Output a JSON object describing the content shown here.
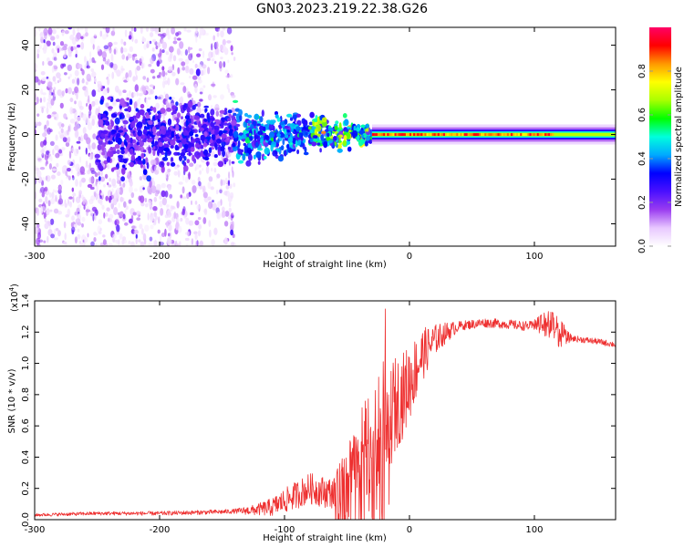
{
  "title": "GN03.2023.219.22.38.G26",
  "colors": {
    "snr_line": "#ee3030",
    "axis": "#000000",
    "background": "#ffffff"
  },
  "chart_data": [
    {
      "type": "heatmap",
      "xlabel": "Height of straight line (km)",
      "ylabel": "Frequency (Hz)",
      "xlim": [
        -300,
        165
      ],
      "ylim": [
        -50,
        48
      ],
      "x_ticks": [
        -300,
        -200,
        -100,
        0,
        100
      ],
      "y_ticks": [
        -40,
        -20,
        0,
        20,
        40
      ],
      "x_tick_labels": [
        "-300",
        "-200",
        "-100",
        "0",
        "100"
      ],
      "y_tick_labels": [
        "-40",
        "-20",
        "0",
        "20",
        "40"
      ],
      "colorbar": {
        "label": "Normalized spectral amplitude",
        "range": [
          0,
          1
        ],
        "ticks": [
          0.0,
          0.2,
          0.4,
          0.6,
          0.8
        ],
        "tick_labels": [
          "0.0",
          "0.2",
          "0.4",
          "0.6",
          "0.8"
        ],
        "colormap": [
          "#ffffff",
          "#e8c8ff",
          "#9a3cf0",
          "#4a10ff",
          "#0000ff",
          "#00aaff",
          "#00ffdd",
          "#00ff00",
          "#aaff00",
          "#ffff00",
          "#ff9900",
          "#ff0000",
          "#ff0066"
        ]
      },
      "features": {
        "scatter_region_km": [
          -300,
          -140
        ],
        "dense_band_km": [
          -250,
          -30
        ],
        "narrow_band_km": [
          -30,
          165
        ],
        "peak_band_km": [
          -30,
          115
        ]
      }
    },
    {
      "type": "line",
      "xlabel": "Height of straight line (km)",
      "ylabel": "SNR (10 * v/v)",
      "y_scale_label": "(x10",
      "y_scale_exp": "4",
      "y_scale_close": ")",
      "xlim": [
        -300,
        165
      ],
      "ylim": [
        0,
        1.4
      ],
      "x_ticks": [
        -300,
        -200,
        -100,
        0,
        100
      ],
      "y_ticks": [
        0.0,
        0.2,
        0.4,
        0.6,
        0.8,
        1.0,
        1.2,
        1.4
      ],
      "x_tick_labels": [
        "-300",
        "-200",
        "-100",
        "0",
        "100"
      ],
      "y_tick_labels": [
        "0.0",
        "0.2",
        "0.4",
        "0.6",
        "0.8",
        "1.0",
        "1.2",
        "1.4"
      ],
      "envelope": {
        "x": [
          -300,
          -250,
          -200,
          -150,
          -125,
          -110,
          -100,
          -90,
          -80,
          -70,
          -60,
          -50,
          -45,
          -40,
          -35,
          -30,
          -25,
          -20,
          -15,
          -10,
          -5,
          0,
          10,
          20,
          30,
          40,
          60,
          80,
          90,
          100,
          110,
          115,
          120,
          130,
          150,
          165
        ],
        "y": [
          0.03,
          0.04,
          0.04,
          0.05,
          0.06,
          0.08,
          0.12,
          0.16,
          0.2,
          0.18,
          0.17,
          0.3,
          0.4,
          0.45,
          0.48,
          0.52,
          0.55,
          0.62,
          0.68,
          0.75,
          0.8,
          0.88,
          1.05,
          1.15,
          1.2,
          1.24,
          1.26,
          1.25,
          1.24,
          1.24,
          1.23,
          1.22,
          1.18,
          1.16,
          1.14,
          1.12
        ]
      },
      "noise_amplitude": {
        "x": [
          -300,
          -140,
          -120,
          -100,
          -80,
          -60,
          -50,
          -40,
          -30,
          -20,
          -10,
          0,
          20,
          40,
          100,
          110,
          120,
          130,
          165
        ],
        "y": [
          0.01,
          0.015,
          0.04,
          0.08,
          0.1,
          0.1,
          0.2,
          0.3,
          0.35,
          0.4,
          0.3,
          0.25,
          0.1,
          0.03,
          0.03,
          0.08,
          0.08,
          0.02,
          0.02
        ]
      }
    }
  ]
}
